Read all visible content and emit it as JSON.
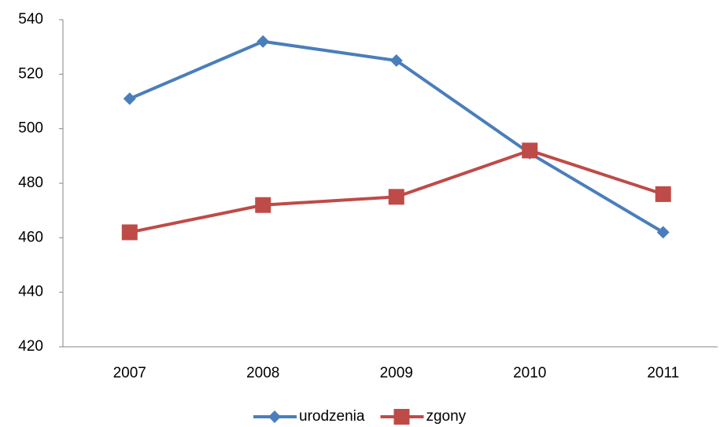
{
  "chart_data": {
    "type": "line",
    "categories": [
      "2007",
      "2008",
      "2009",
      "2010",
      "2011"
    ],
    "series": [
      {
        "name": "urodzenia",
        "color": "#4a7ebb",
        "marker": "diamond",
        "values": [
          511,
          532,
          525,
          491,
          462
        ]
      },
      {
        "name": "zgony",
        "color": "#be4b48",
        "marker": "square",
        "values": [
          462,
          472,
          475,
          492,
          476
        ]
      }
    ],
    "ylim": [
      420,
      540
    ],
    "yticks": [
      420,
      440,
      460,
      480,
      500,
      520,
      540
    ],
    "grid": false,
    "legend": "bottom"
  }
}
